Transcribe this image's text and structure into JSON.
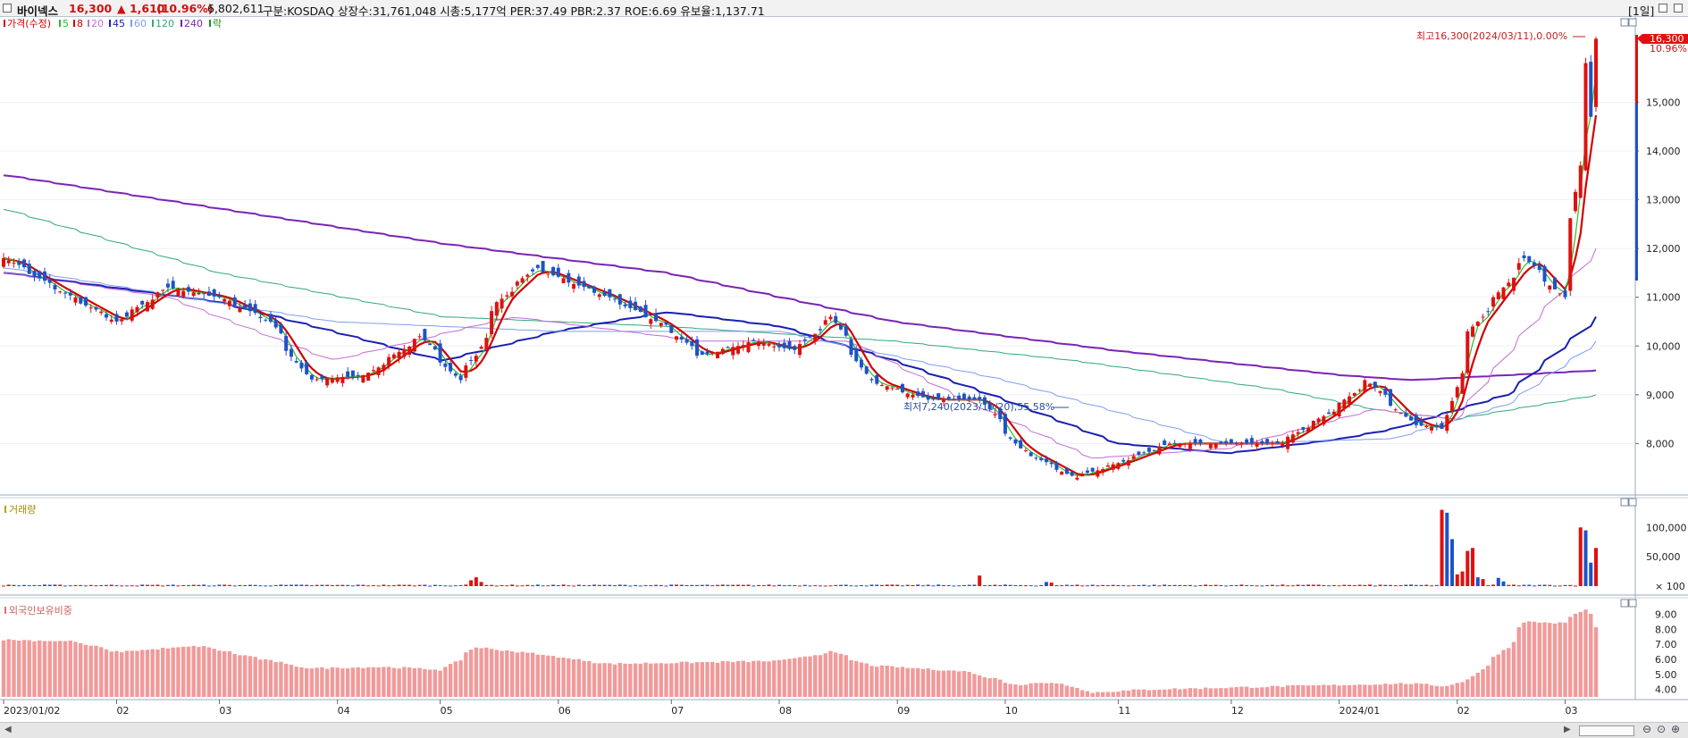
{
  "header": {
    "stock_name": "바이넥스",
    "price": "16,300",
    "change": "▲ 1,610",
    "change_pct": "(10.96%)",
    "volume": "6,802,611",
    "info": "구분:KOSDAQ 상장수:31,761,048 시총:5,177억 PER:37.49 PBR:2.37 ROE:6.69 유보율:1,137.71",
    "period": "[1일]"
  },
  "price_legend": [
    {
      "label": "가격(수정)",
      "color": "#d20000"
    },
    {
      "label": "5",
      "color": "#2dbb2d"
    },
    {
      "label": "8",
      "color": "#d20000"
    },
    {
      "label": "20",
      "color": "#c46bd6"
    },
    {
      "label": "45",
      "color": "#1a20b0"
    },
    {
      "label": "60",
      "color": "#7f9ef0"
    },
    {
      "label": "120",
      "color": "#33a877"
    },
    {
      "label": "240",
      "color": "#7a24b4"
    },
    {
      "label": "락",
      "color": "#1f8f1f"
    }
  ],
  "volume_legend": "거래량",
  "foreign_legend": "외국인보유비중",
  "annotations": {
    "high": "최고16,300(2024/03/11),0.00%",
    "low": "최저7,240(2023/10/20),55.58%",
    "price_tag": "16,300",
    "pct_tag": "10.96%"
  },
  "x_labels": [
    "2023/01/02",
    "02",
    "03",
    "04",
    "05",
    "06",
    "07",
    "08",
    "09",
    "10",
    "11",
    "12",
    "2024/01",
    "02",
    "03"
  ],
  "colors": {
    "up": "#e01010",
    "down": "#1f52c8",
    "foreign_bar": "#f19a9a"
  },
  "chart_data": [
    {
      "type": "candlestick",
      "title": "",
      "ylim": [
        7000,
        16600
      ],
      "y_ticks": [
        "8,000",
        "9,000",
        "10,000",
        "11,000",
        "12,000",
        "13,000",
        "14,000",
        "15,000"
      ],
      "anchors": [
        [
          "2023/01/02",
          11800
        ],
        [
          "2023/01/15",
          11200
        ],
        [
          "2023/02/01",
          10500
        ],
        [
          "2023/02/15",
          11200
        ],
        [
          "2023/03/01",
          11000
        ],
        [
          "2023/03/15",
          10500
        ],
        [
          "2023/03/25",
          9300
        ],
        [
          "2023/04/10",
          9400
        ],
        [
          "2023/04/25",
          10200
        ],
        [
          "2023/05/05",
          9300
        ],
        [
          "2023/05/10",
          9800
        ],
        [
          "2023/05/16",
          10900
        ],
        [
          "2023/05/26",
          11600
        ],
        [
          "2023/06/15",
          11000
        ],
        [
          "2023/07/01",
          10400
        ],
        [
          "2023/07/10",
          9800
        ],
        [
          "2023/07/25",
          10100
        ],
        [
          "2023/08/05",
          9900
        ],
        [
          "2023/08/15",
          10600
        ],
        [
          "2023/08/25",
          9300
        ],
        [
          "2023/09/10",
          8900
        ],
        [
          "2023/09/25",
          8900
        ],
        [
          "2023/10/05",
          7900
        ],
        [
          "2023/10/20",
          7300
        ],
        [
          "2023/11/01",
          7600
        ],
        [
          "2023/11/15",
          8000
        ],
        [
          "2023/12/15",
          8000
        ],
        [
          "2023/12/30",
          8700
        ],
        [
          "2024/01/08",
          9300
        ],
        [
          "2024/01/20",
          8400
        ],
        [
          "2024/01/29",
          8300
        ],
        [
          "2024/02/05",
          10300
        ],
        [
          "2024/02/20",
          11800
        ],
        [
          "2024/03/01",
          11000
        ],
        [
          "2024/03/06",
          13700
        ],
        [
          "2024/03/07",
          15800
        ],
        [
          "2024/03/08",
          14700
        ],
        [
          "2024/03/11",
          16300
        ]
      ],
      "ma_lines": [
        {
          "name": "240",
          "color": "#7a24b4",
          "points": [
            [
              "2023/01/02",
              13500
            ],
            [
              "2023/05/01",
              12100
            ],
            [
              "2023/07/01",
              11500
            ],
            [
              "2023/09/01",
              10500
            ],
            [
              "2023/11/01",
              9900
            ],
            [
              "2024/01/01",
              9400
            ],
            [
              "2024/01/20",
              9300
            ],
            [
              "2024/03/11",
              9500
            ]
          ]
        },
        {
          "name": "120",
          "color": "#33a877",
          "points": [
            [
              "2023/01/02",
              12800
            ],
            [
              "2023/03/01",
              11500
            ],
            [
              "2023/05/01",
              10600
            ],
            [
              "2023/07/01",
              10400
            ],
            [
              "2023/09/01",
              10100
            ],
            [
              "2023/10/20",
              9700
            ],
            [
              "2023/12/15",
              9100
            ],
            [
              "2024/01/10",
              8700
            ],
            [
              "2024/02/01",
              8500
            ],
            [
              "2024/03/11",
              9000
            ]
          ]
        },
        {
          "name": "45",
          "color": "#1a20b0",
          "points": [
            [
              "2023/01/02",
              11500
            ],
            [
              "2023/03/01",
              10900
            ],
            [
              "2023/04/01",
              10300
            ],
            [
              "2023/05/01",
              9700
            ],
            [
              "2023/06/01",
              10300
            ],
            [
              "2023/07/01",
              10700
            ],
            [
              "2023/08/01",
              10400
            ],
            [
              "2023/09/01",
              9700
            ],
            [
              "2023/10/01",
              8900
            ],
            [
              "2023/11/01",
              8000
            ],
            [
              "2023/12/01",
              7800
            ],
            [
              "2024/01/01",
              8100
            ],
            [
              "2024/01/15",
              8300
            ],
            [
              "2024/02/15",
              9000
            ],
            [
              "2024/03/11",
              10600
            ]
          ]
        },
        {
          "name": "60",
          "color": "#7f9ef0",
          "points": [
            [
              "2023/01/02",
              11600
            ],
            [
              "2023/04/01",
              10500
            ],
            [
              "2023/06/01",
              10300
            ],
            [
              "2023/08/01",
              10300
            ],
            [
              "2023/10/01",
              9300
            ],
            [
              "2023/12/01",
              8000
            ],
            [
              "2024/01/15",
              8100
            ],
            [
              "2024/02/15",
              8800
            ],
            [
              "2024/03/11",
              10100
            ]
          ]
        },
        {
          "name": "20",
          "color": "#c46bd6",
          "points": [
            [
              "2023/01/02",
              11500
            ],
            [
              "2023/02/15",
              11000
            ],
            [
              "2023/04/01",
              9700
            ],
            [
              "2023/05/20",
              10600
            ],
            [
              "2023/07/10",
              10100
            ],
            [
              "2023/08/20",
              10100
            ],
            [
              "2023/09/20",
              8900
            ],
            [
              "2023/10/25",
              7700
            ],
            [
              "2023/12/01",
              7900
            ],
            [
              "2024/01/10",
              8700
            ],
            [
              "2024/02/01",
              8500
            ],
            [
              "2024/02/20",
              10300
            ],
            [
              "2024/03/11",
              12000
            ]
          ]
        }
      ],
      "short_ma": [
        {
          "name": "8",
          "color": "#d20000",
          "lag": 4,
          "width": 2.2
        },
        {
          "name": "5",
          "color": "#2dbb2d",
          "lag": 2,
          "width": 1.2
        }
      ]
    },
    {
      "type": "bar",
      "title": "",
      "ylim": [
        0,
        140000
      ],
      "y_ticks": [
        "100,000",
        "50,000"
      ],
      "unit_label": "× 100",
      "spikes": [
        [
          "2024/01/29",
          130000,
          "up"
        ],
        [
          "2024/01/30",
          125000,
          "down"
        ],
        [
          "2024/01/31",
          80000,
          "down"
        ],
        [
          "2024/02/01",
          20000,
          "up"
        ],
        [
          "2024/02/02",
          25000,
          "up"
        ],
        [
          "2024/02/05",
          60000,
          "up"
        ],
        [
          "2024/02/06",
          65000,
          "up"
        ],
        [
          "2024/02/07",
          15000,
          "down"
        ],
        [
          "2024/02/08",
          12000,
          "up"
        ],
        [
          "2024/02/13",
          14000,
          "down"
        ],
        [
          "2024/02/14",
          8000,
          "down"
        ],
        [
          "2024/03/06",
          100000,
          "up"
        ],
        [
          "2024/03/07",
          95000,
          "down"
        ],
        [
          "2024/03/08",
          40000,
          "down"
        ],
        [
          "2024/03/11",
          65000,
          "up"
        ],
        [
          "2023/05/09",
          10000,
          "up"
        ],
        [
          "2023/05/10",
          15000,
          "up"
        ],
        [
          "2023/05/11",
          7000,
          "up"
        ],
        [
          "2023/09/25",
          18000,
          "up"
        ],
        [
          "2023/10/12",
          7000,
          "down"
        ],
        [
          "2023/10/13",
          6000,
          "up"
        ]
      ]
    },
    {
      "type": "bar",
      "title": "",
      "ylim": [
        3.5,
        9.8
      ],
      "y_ticks": [
        "9.00",
        "8.00",
        "7.00",
        "6.00",
        "5.00",
        "4.00"
      ],
      "anchors": [
        [
          "2023/01/02",
          7.3
        ],
        [
          "2023/01/20",
          7.2
        ],
        [
          "2023/02/01",
          6.5
        ],
        [
          "2023/02/25",
          6.9
        ],
        [
          "2023/03/01",
          6.6
        ],
        [
          "2023/03/25",
          5.4
        ],
        [
          "2023/04/15",
          5.5
        ],
        [
          "2023/05/01",
          5.3
        ],
        [
          "2023/05/10",
          6.8
        ],
        [
          "2023/05/25",
          6.4
        ],
        [
          "2023/06/15",
          5.7
        ],
        [
          "2023/07/10",
          5.8
        ],
        [
          "2023/08/01",
          5.9
        ],
        [
          "2023/08/15",
          6.5
        ],
        [
          "2023/08/25",
          5.6
        ],
        [
          "2023/09/20",
          5.2
        ],
        [
          "2023/10/05",
          4.3
        ],
        [
          "2023/10/15",
          4.5
        ],
        [
          "2023/10/25",
          3.8
        ],
        [
          "2023/11/10",
          4.0
        ],
        [
          "2023/12/15",
          4.2
        ],
        [
          "2024/01/20",
          4.4
        ],
        [
          "2024/01/29",
          4.2
        ],
        [
          "2024/02/05",
          4.7
        ],
        [
          "2024/02/15",
          6.8
        ],
        [
          "2024/02/20",
          8.5
        ],
        [
          "2024/03/01",
          8.4
        ],
        [
          "2024/03/07",
          9.3
        ],
        [
          "2024/03/11",
          8.1
        ]
      ]
    }
  ]
}
